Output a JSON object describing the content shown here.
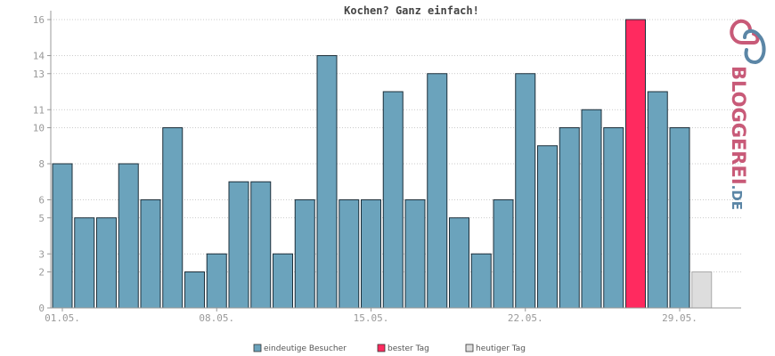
{
  "chart_data": {
    "type": "bar",
    "title": "Kochen? Ganz einfach!",
    "ylim": [
      0,
      16
    ],
    "y_ticks": [
      "0",
      "2",
      "3",
      "5",
      "6",
      "8",
      "10",
      "11",
      "13",
      "14",
      "16"
    ],
    "y_tick_values": [
      0,
      2,
      3,
      5,
      6,
      8,
      10,
      11,
      13,
      14,
      16
    ],
    "x_tick_labels": [
      "01.05.",
      "08.05.",
      "15.05.",
      "22.05.",
      "29.05."
    ],
    "x_tick_positions": [
      1,
      8,
      15,
      22,
      29
    ],
    "grid": true,
    "legend_position": "bottom",
    "values": [
      8,
      5,
      5,
      8,
      6,
      10,
      2,
      3,
      7,
      7,
      3,
      6,
      14,
      6,
      6,
      12,
      6,
      13,
      5,
      3,
      6,
      13,
      9,
      10,
      11,
      10,
      16,
      12,
      10,
      2
    ],
    "best_day_index": 26,
    "today_index": 29,
    "series": [
      {
        "name": "eindeutige Besucher",
        "color": "#6ba3bc"
      },
      {
        "name": "bester Tag",
        "color": "#ff2a5f"
      },
      {
        "name": "heutiger Tag",
        "color": "#dddddd"
      }
    ]
  },
  "brand": {
    "name": "BLOGGEREI",
    "tld": ".DE",
    "color": "#c85a78",
    "accent": "#5b86a6"
  }
}
